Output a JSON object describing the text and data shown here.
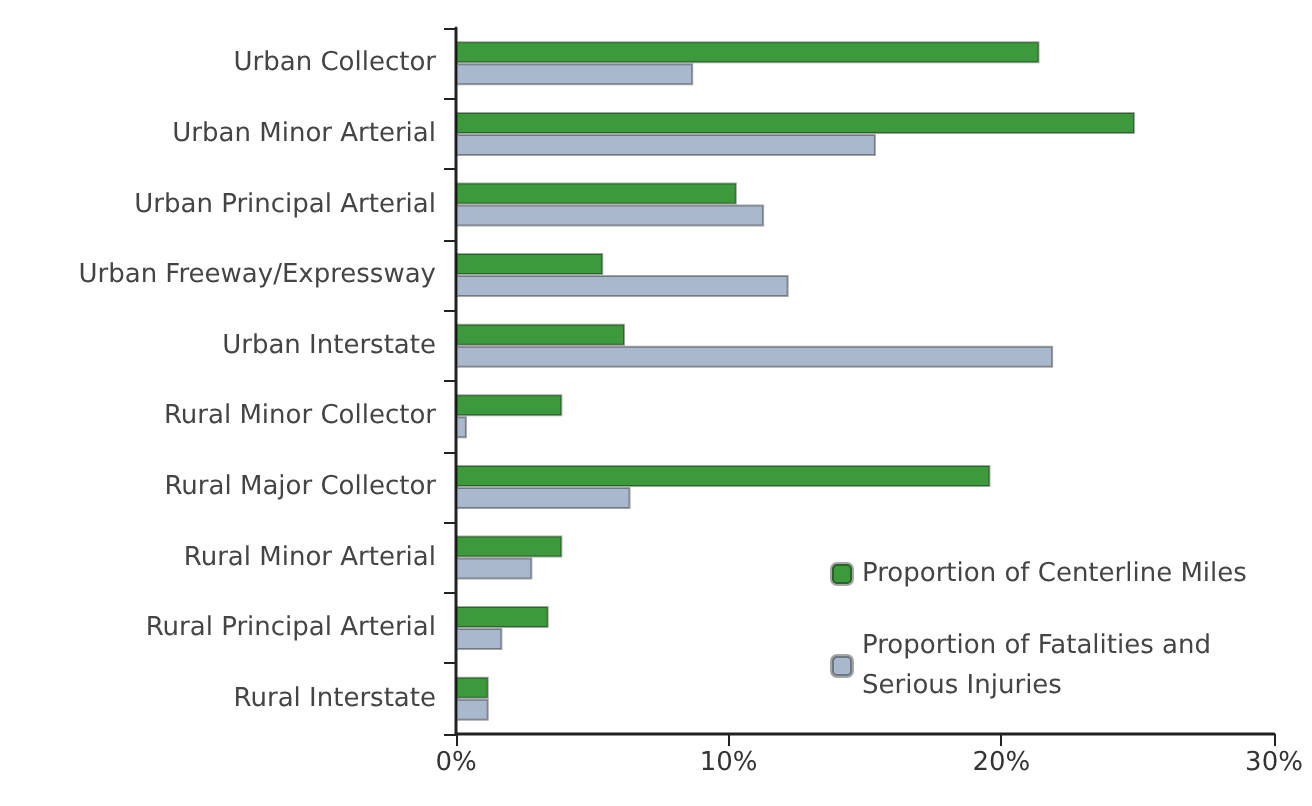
{
  "chart_data": {
    "type": "bar",
    "orientation": "horizontal",
    "categories": [
      "Urban Collector",
      "Urban Minor Arterial",
      "Urban Principal Arterial",
      "Urban Freeway/Expressway",
      "Urban Interstate",
      "Rural Minor Collector",
      "Rural Major Collector",
      "Rural Minor Arterial",
      "Rural Principal Arterial",
      "Rural Interstate"
    ],
    "series": [
      {
        "name": "Proportion of Centerline Miles",
        "color": "#3c9a3c",
        "values": [
          21.4,
          24.9,
          10.3,
          5.4,
          6.2,
          3.9,
          19.6,
          3.9,
          3.4,
          1.2
        ]
      },
      {
        "name": "Proportion of Fatalities and Serious Injuries",
        "color": "#a9b8cc",
        "values": [
          8.7,
          15.4,
          11.3,
          12.2,
          21.9,
          0.4,
          6.4,
          2.8,
          1.7,
          1.2
        ]
      }
    ],
    "xlim": [
      0,
      30
    ],
    "xticks": [
      {
        "value": 0,
        "label": "0%"
      },
      {
        "value": 10,
        "label": "10%"
      },
      {
        "value": 20,
        "label": "20%"
      },
      {
        "value": 30,
        "label": "30%"
      }
    ],
    "grid": false,
    "legend": "bottom right"
  }
}
